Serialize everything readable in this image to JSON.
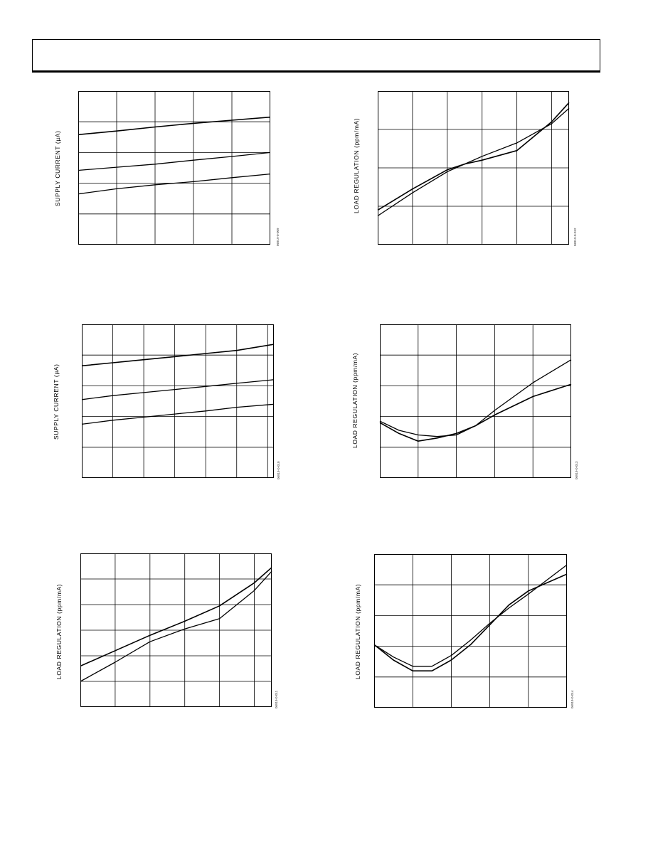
{
  "header": {},
  "chart_data": [
    {
      "type": "line",
      "ylabel": "SUPPLY CURRENT (µA)",
      "figure_id": "06919-0-009",
      "xlim": [
        0,
        5
      ],
      "ylim": [
        0,
        5
      ],
      "series": [
        {
          "x": [
            0,
            1,
            2,
            3,
            4,
            5
          ],
          "y": [
            3.58,
            3.7,
            3.83,
            3.95,
            4.05,
            4.15
          ]
        },
        {
          "x": [
            0,
            1,
            2,
            3,
            4,
            5
          ],
          "y": [
            2.42,
            2.52,
            2.62,
            2.75,
            2.87,
            3.0
          ]
        },
        {
          "x": [
            0,
            1,
            2,
            3,
            4,
            5
          ],
          "y": [
            1.65,
            1.82,
            1.95,
            2.05,
            2.18,
            2.3
          ]
        }
      ]
    },
    {
      "type": "line",
      "ylabel": "LOAD REGULATION (ppm/mA)",
      "figure_id": "06919-0-012",
      "xlim": [
        0,
        5.5
      ],
      "ylim": [
        0,
        4
      ],
      "series": [
        {
          "x": [
            0,
            1,
            2,
            2.5,
            3,
            4,
            5,
            5.5
          ],
          "y": [
            0.9,
            1.45,
            1.95,
            2.1,
            2.2,
            2.45,
            3.2,
            3.7
          ]
        },
        {
          "x": [
            0,
            1,
            2,
            2.5,
            3,
            4,
            5,
            5.5
          ],
          "y": [
            0.75,
            1.35,
            1.9,
            2.1,
            2.3,
            2.65,
            3.15,
            3.55
          ]
        }
      ]
    },
    {
      "type": "line",
      "ylabel": "SUPPLY CURRENT (µA)",
      "figure_id": "06919-0-010",
      "xlim": [
        0,
        6.2
      ],
      "ylim": [
        0,
        5
      ],
      "series": [
        {
          "x": [
            0,
            1,
            2,
            3,
            4,
            5,
            6.2
          ],
          "y": [
            3.65,
            3.75,
            3.85,
            3.95,
            4.05,
            4.15,
            4.35
          ]
        },
        {
          "x": [
            0,
            1,
            2,
            3,
            4,
            5,
            6.2
          ],
          "y": [
            2.55,
            2.68,
            2.78,
            2.88,
            2.98,
            3.08,
            3.2
          ]
        },
        {
          "x": [
            0,
            1,
            2,
            3,
            4,
            5,
            6.2
          ],
          "y": [
            1.75,
            1.88,
            1.98,
            2.08,
            2.18,
            2.3,
            2.4
          ]
        }
      ]
    },
    {
      "type": "line",
      "ylabel": "LOAD REGULATION (ppm/mA)",
      "figure_id": "06919-0-013",
      "xlim": [
        0,
        5
      ],
      "ylim": [
        0,
        5
      ],
      "series": [
        {
          "x": [
            0,
            0.5,
            1,
            1.5,
            2,
            2.5,
            3,
            4,
            5
          ],
          "y": [
            1.8,
            1.45,
            1.2,
            1.3,
            1.45,
            1.7,
            2.05,
            2.65,
            3.05
          ]
        },
        {
          "x": [
            0,
            0.5,
            1,
            1.5,
            2,
            2.5,
            3,
            4,
            5
          ],
          "y": [
            1.85,
            1.55,
            1.4,
            1.35,
            1.4,
            1.7,
            2.2,
            3.1,
            3.85
          ]
        }
      ]
    },
    {
      "type": "line",
      "ylabel": "LOAD REGULATION (ppm/mA)",
      "figure_id": "06919-0-011",
      "xlim": [
        0,
        5.5
      ],
      "ylim": [
        0,
        6
      ],
      "series": [
        {
          "x": [
            0,
            1,
            2,
            3,
            4,
            5,
            5.5
          ],
          "y": [
            1.6,
            2.2,
            2.8,
            3.35,
            3.95,
            4.85,
            5.45
          ]
        },
        {
          "x": [
            0,
            1,
            2,
            3,
            4,
            5,
            5.5
          ],
          "y": [
            1.0,
            1.75,
            2.55,
            3.05,
            3.45,
            4.55,
            5.3
          ]
        }
      ]
    },
    {
      "type": "line",
      "ylabel": "LOAD REGULATION (ppm/mA)",
      "figure_id": "06919-0-014",
      "xlim": [
        0,
        5
      ],
      "ylim": [
        0,
        5
      ],
      "series": [
        {
          "x": [
            0,
            0.5,
            1,
            1.5,
            2,
            2.5,
            3,
            3.5,
            4,
            5
          ],
          "y": [
            2.05,
            1.55,
            1.2,
            1.2,
            1.55,
            2.05,
            2.7,
            3.35,
            3.8,
            4.35
          ]
        },
        {
          "x": [
            0,
            0.5,
            1,
            1.5,
            2,
            2.5,
            3,
            3.5,
            4,
            5
          ],
          "y": [
            2.05,
            1.65,
            1.35,
            1.35,
            1.7,
            2.2,
            2.75,
            3.25,
            3.7,
            4.65
          ]
        }
      ]
    }
  ]
}
